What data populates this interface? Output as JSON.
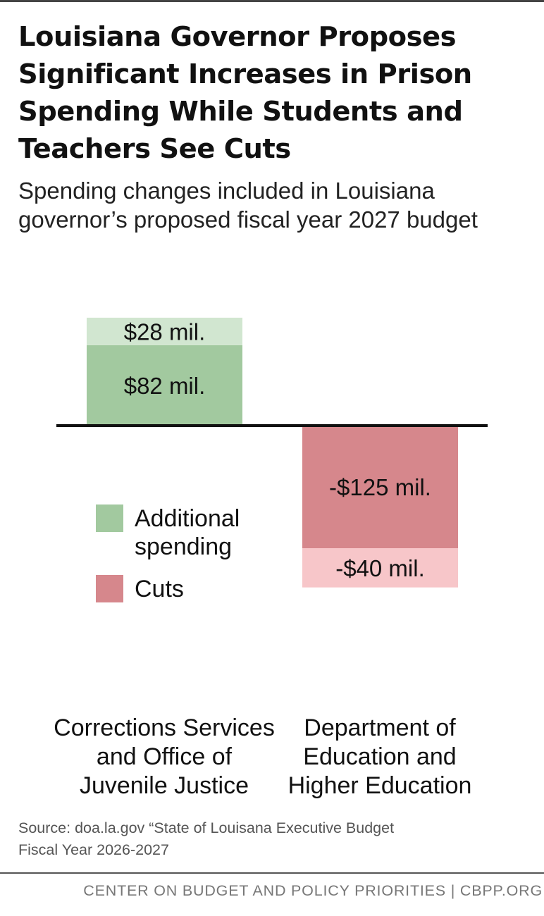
{
  "chart_data": {
    "type": "bar",
    "stacked": true,
    "title": "Louisiana Governor Proposes Significant Increases in Prison Spending While Students and Teachers See Cuts",
    "subtitle": "Spending changes included in Louisiana governor’s proposed fiscal year 2027 budget",
    "categories": [
      "Corrections Services and Office of Juvenile Justice",
      "Department of Education and Higher Education"
    ],
    "category_labels": [
      [
        "Corrections Services",
        "and Office of",
        "Juvenile Justice"
      ],
      [
        "Department of",
        "Education and",
        "Higher Education"
      ]
    ],
    "segments": [
      {
        "category": 0,
        "legend_index": 0,
        "shade": "dark",
        "value": 82,
        "label": "$82 mil."
      },
      {
        "category": 0,
        "legend_index": 0,
        "shade": "light",
        "value": 28,
        "label": "$28 mil."
      },
      {
        "category": 1,
        "legend_index": 1,
        "shade": "dark",
        "value": -125,
        "label": "-$125 mil."
      },
      {
        "category": 1,
        "legend_index": 1,
        "shade": "light",
        "value": -40,
        "label": "-$40 mil."
      }
    ],
    "legend": [
      {
        "name": "Additional spending",
        "lines": [
          "Additional",
          "spending"
        ],
        "color": "#a2c99f"
      },
      {
        "name": "Cuts",
        "lines": [
          "Cuts"
        ],
        "color": "#d6878c"
      }
    ],
    "colors": {
      "increase_dark": "#a2c99f",
      "increase_light": "#d1e6d0",
      "cut_dark": "#d6878c",
      "cut_light": "#f7c6c9",
      "baseline": "#111111"
    },
    "ylim": [
      -165,
      110
    ],
    "grid": false,
    "legend_placement": "middle-left"
  },
  "source": [
    "Source:  doa.la.gov “State of Louisana Executive Budget",
    "Fiscal Year 2026-2027"
  ],
  "footer": "CENTER ON BUDGET AND POLICY PRIORITIES | CBPP.ORG"
}
